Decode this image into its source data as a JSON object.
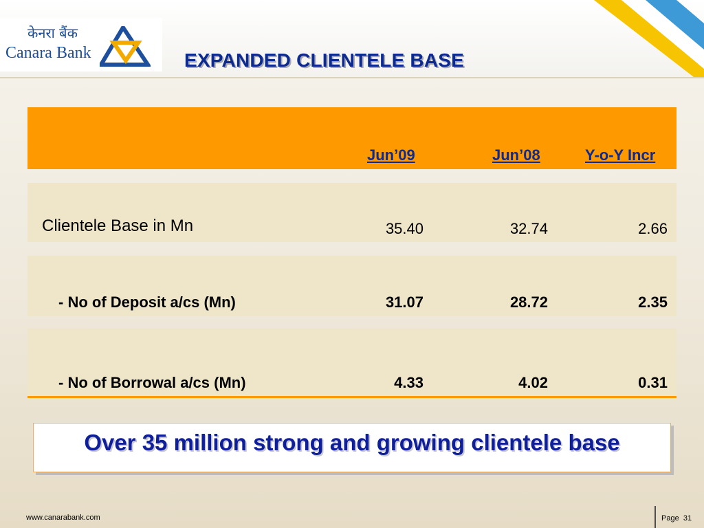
{
  "logo": {
    "hindi": "केनरा बैंक",
    "english": "Canara Bank",
    "mark_color": "#1d4f9c",
    "accent_color": "#f2a900"
  },
  "title": "EXPANDED CLIENTELE BASE",
  "table": {
    "headers": [
      "Jun’09",
      "Jun’08",
      "Y-o-Y Incr"
    ],
    "rows": [
      {
        "label": "Clientele Base in Mn",
        "values": [
          "35.40",
          "32.74",
          "2.66"
        ]
      },
      {
        "label": "- No of Deposit a/cs (Mn)",
        "values": [
          "31.07",
          "28.72",
          "2.35"
        ]
      },
      {
        "label": "- No of Borrowal a/cs (Mn)",
        "values": [
          "4.33",
          "4.02",
          "0.31"
        ]
      }
    ]
  },
  "callout": "Over 35 million strong and growing clientele base",
  "footer": {
    "url": "www.canarabank.com",
    "page_label": "Page",
    "page_number": "31"
  },
  "colors": {
    "header_band": "#ff9900",
    "row_band": "#efe5c9",
    "title_blue": "#0c2a8f"
  }
}
